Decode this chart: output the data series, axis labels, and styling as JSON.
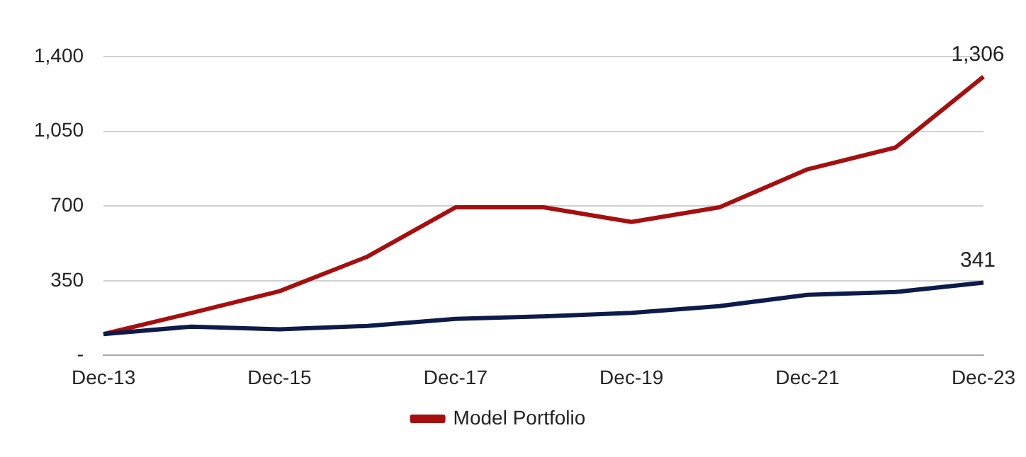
{
  "chart_data": {
    "type": "line",
    "categories": [
      "Dec-13",
      null,
      "Dec-15",
      null,
      "Dec-17",
      null,
      "Dec-19",
      null,
      "Dec-21",
      null,
      "Dec-23"
    ],
    "series": [
      {
        "color": "#0d1b4a",
        "values": [
          100,
          135,
          122,
          138,
          171,
          183,
          199,
          231,
          284,
          297,
          341
        ],
        "value_labels": [
          null,
          null,
          null,
          null,
          null,
          null,
          null,
          null,
          null,
          null,
          "341"
        ]
      },
      {
        "name": "Model Portfolio",
        "color": "#a50f0f",
        "values": [
          100,
          199,
          301,
          463,
          694,
          694,
          625,
          694,
          872,
          974,
          1306
        ],
        "value_labels": [
          null,
          null,
          null,
          null,
          null,
          null,
          null,
          null,
          null,
          null,
          "1,306"
        ]
      }
    ],
    "ylim": [
      0,
      1400
    ],
    "yticks": [
      {
        "value": 0,
        "label": "-"
      },
      350,
      700,
      {
        "value": 1050,
        "label": "1,050"
      },
      {
        "value": 1400,
        "label": "1,400"
      }
    ],
    "grid": "y",
    "legend": "bottom",
    "marker": "none",
    "line_style": "solid"
  }
}
